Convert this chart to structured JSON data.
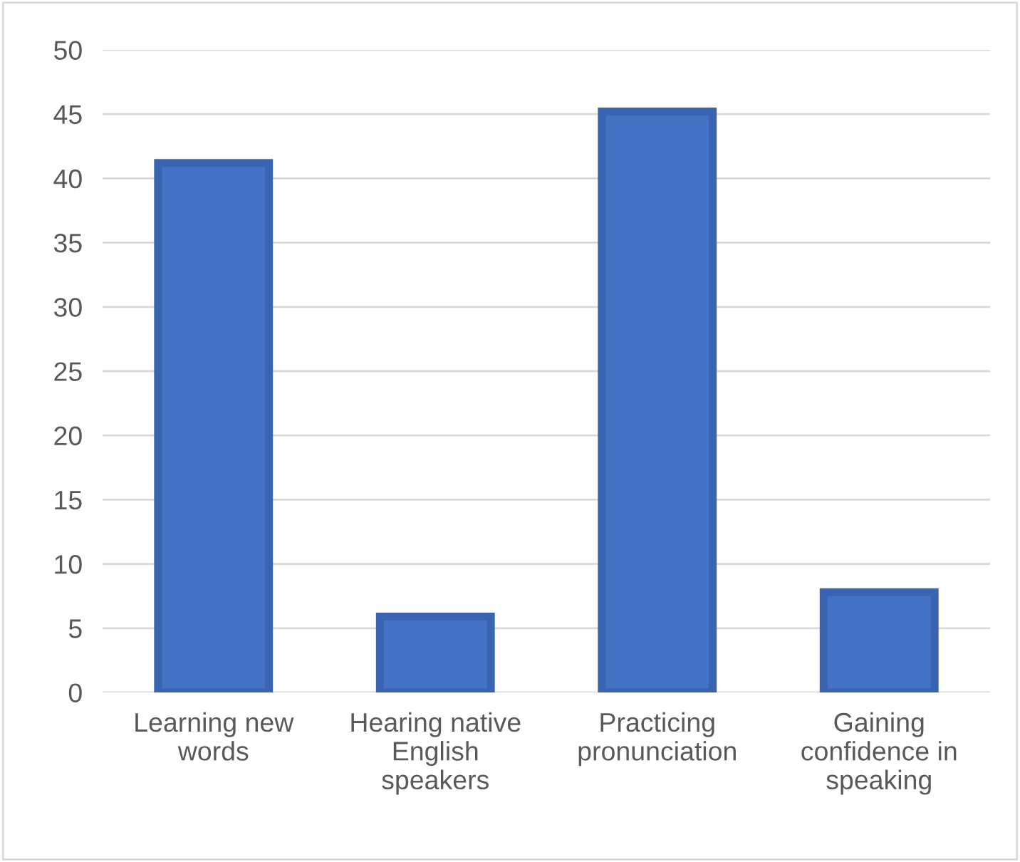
{
  "chart_data": {
    "type": "bar",
    "categories": [
      "Learning new\nwords",
      "Hearing native\nEnglish\nspeakers",
      "Practicing\npronunciation",
      "Gaining\nconfidence in\nspeaking"
    ],
    "values": [
      41.2,
      5.9,
      45.2,
      7.8
    ],
    "color": "#4472c4",
    "ylim": [
      0,
      50
    ],
    "yticks": [
      0,
      5,
      10,
      15,
      20,
      25,
      30,
      35,
      40,
      45,
      50
    ],
    "grid": "y"
  }
}
